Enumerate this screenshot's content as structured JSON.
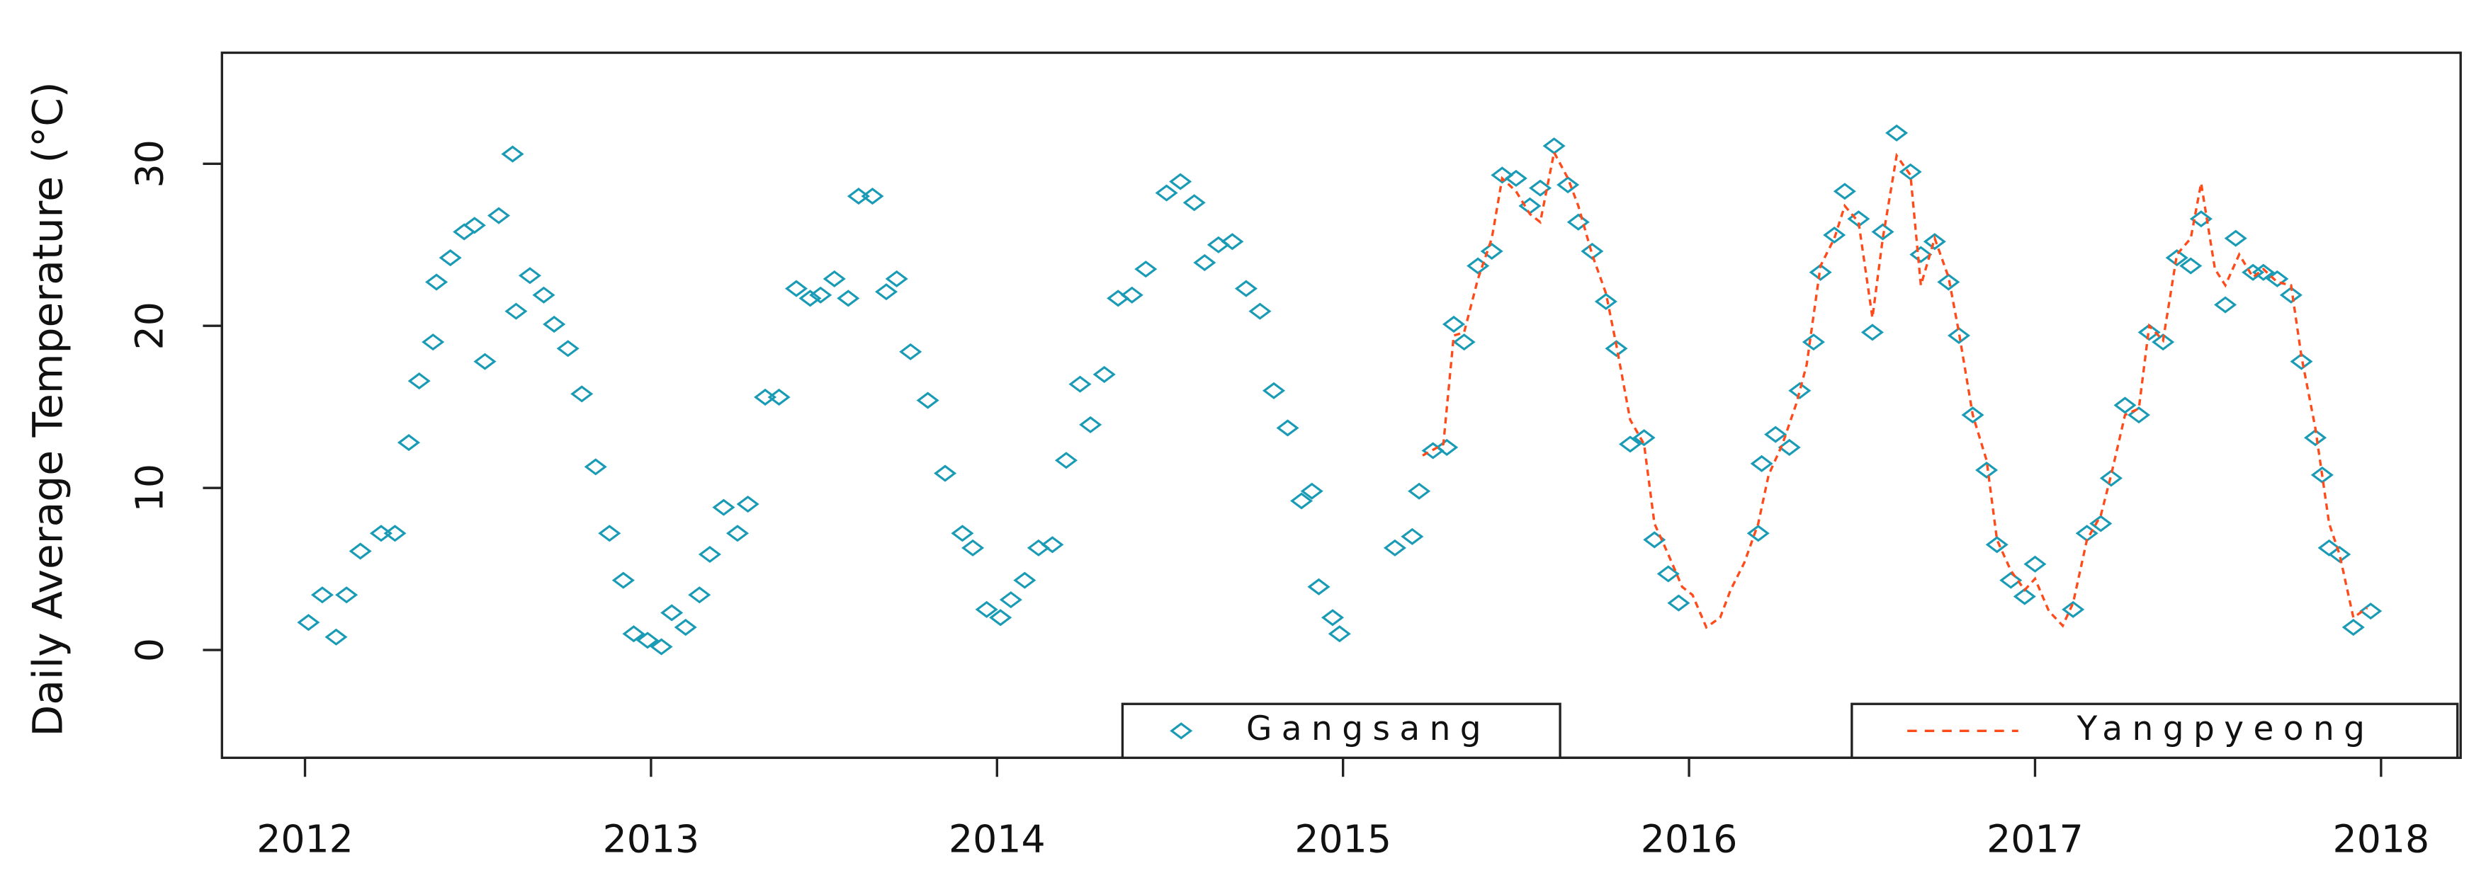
{
  "chart_data": {
    "type": "scatter",
    "ylabel": "Daily Average Temperature (°C)",
    "xlim": [
      2011.76,
      2018.23
    ],
    "ylim": [
      -6.65,
      36.85
    ],
    "xticks": [
      2012,
      2013,
      2014,
      2015,
      2016,
      2017,
      2018
    ],
    "yticks": [
      0,
      10,
      20,
      30
    ],
    "legend_position": "bottom",
    "series": [
      {
        "name": "Gangsang",
        "color": "#1a9bb5",
        "type": "scatter",
        "x": [
          2012.01,
          2012.05,
          2012.09,
          2012.12,
          2012.16,
          2012.22,
          2012.26,
          2012.3,
          2012.33,
          2012.37,
          2012.38,
          2012.42,
          2012.46,
          2012.49,
          2012.52,
          2012.56,
          2012.6,
          2012.61,
          2012.65,
          2012.69,
          2012.72,
          2012.76,
          2012.8,
          2012.84,
          2012.88,
          2012.92,
          2012.95,
          2012.99,
          2013.03,
          2013.06,
          2013.1,
          2013.14,
          2013.17,
          2013.21,
          2013.25,
          2013.28,
          2013.33,
          2013.37,
          2013.42,
          2013.46,
          2013.49,
          2013.53,
          2013.57,
          2013.6,
          2013.64,
          2013.68,
          2013.71,
          2013.75,
          2013.8,
          2013.85,
          2013.9,
          2013.93,
          2013.97,
          2014.01,
          2014.04,
          2014.08,
          2014.12,
          2014.16,
          2014.2,
          2014.24,
          2014.27,
          2014.31,
          2014.35,
          2014.39,
          2014.43,
          2014.49,
          2014.53,
          2014.57,
          2014.6,
          2014.64,
          2014.68,
          2014.72,
          2014.76,
          2014.8,
          2014.84,
          2014.88,
          2014.91,
          2014.93,
          2014.97,
          2014.99,
          2015.15,
          2015.2,
          2015.22,
          2015.26,
          2015.3,
          2015.32,
          2015.35,
          2015.39,
          2015.43,
          2015.46,
          2015.5,
          2015.54,
          2015.57,
          2015.61,
          2015.65,
          2015.68,
          2015.72,
          2015.76,
          2015.79,
          2015.83,
          2015.87,
          2015.9,
          2015.94,
          2015.97,
          2016.2,
          2016.21,
          2016.25,
          2016.29,
          2016.32,
          2016.36,
          2016.38,
          2016.42,
          2016.45,
          2016.49,
          2016.53,
          2016.56,
          2016.6,
          2016.64,
          2016.67,
          2016.71,
          2016.75,
          2016.78,
          2016.82,
          2016.86,
          2016.89,
          2016.93,
          2016.97,
          2017.0,
          2017.11,
          2017.15,
          2017.19,
          2017.22,
          2017.26,
          2017.3,
          2017.33,
          2017.37,
          2017.41,
          2017.45,
          2017.48,
          2017.55,
          2017.58,
          2017.63,
          2017.66,
          2017.7,
          2017.74,
          2017.77,
          2017.81,
          2017.83,
          2017.85,
          2017.88,
          2017.92,
          2017.97
        ],
        "values": [
          1.7,
          3.4,
          0.8,
          3.4,
          6.1,
          7.2,
          7.2,
          12.8,
          16.6,
          19.0,
          22.7,
          24.2,
          25.8,
          26.2,
          17.8,
          26.8,
          30.6,
          20.9,
          23.1,
          21.9,
          20.1,
          18.6,
          15.8,
          11.3,
          7.2,
          4.3,
          1.0,
          0.6,
          0.2,
          2.3,
          1.4,
          3.4,
          5.9,
          8.8,
          7.2,
          9.0,
          15.6,
          15.6,
          22.3,
          21.7,
          21.9,
          22.9,
          21.7,
          28.0,
          28.0,
          22.1,
          22.9,
          18.4,
          15.4,
          10.9,
          7.2,
          6.3,
          2.5,
          2.0,
          3.1,
          4.3,
          6.3,
          6.5,
          11.7,
          16.4,
          13.9,
          17.0,
          21.7,
          21.9,
          23.5,
          28.2,
          28.9,
          27.6,
          23.9,
          25.0,
          25.2,
          22.3,
          20.9,
          16.0,
          13.7,
          9.2,
          9.8,
          3.9,
          2.0,
          1.0,
          6.3,
          7.0,
          9.8,
          12.3,
          12.5,
          20.1,
          19.0,
          23.7,
          24.6,
          29.3,
          29.1,
          27.4,
          28.5,
          31.1,
          28.7,
          26.4,
          24.6,
          21.5,
          18.6,
          12.7,
          13.1,
          6.8,
          4.7,
          2.9,
          7.2,
          11.5,
          13.3,
          12.5,
          16.0,
          19.0,
          23.3,
          25.6,
          28.3,
          26.6,
          19.6,
          25.8,
          31.9,
          29.5,
          24.4,
          25.2,
          22.7,
          19.4,
          14.5,
          11.1,
          6.5,
          4.3,
          3.3,
          5.3,
          2.5,
          7.2,
          7.8,
          10.6,
          15.1,
          14.5,
          19.6,
          19.0,
          24.2,
          23.7,
          26.6,
          21.3,
          25.4,
          23.3,
          23.3,
          22.9,
          21.9,
          17.8,
          13.1,
          10.8,
          6.3,
          5.9,
          1.4,
          2.4
        ]
      },
      {
        "name": "Yangpyeong",
        "color": "#ff4a1a",
        "type": "line",
        "dash": true,
        "x": [
          2015.23,
          2015.29,
          2015.32,
          2015.35,
          2015.39,
          2015.43,
          2015.46,
          2015.5,
          2015.54,
          2015.57,
          2015.61,
          2015.65,
          2015.68,
          2015.72,
          2015.76,
          2015.79,
          2015.83,
          2015.87,
          2015.9,
          2015.94,
          2015.98,
          2016.01,
          2016.05,
          2016.09,
          2016.12,
          2016.16,
          2016.2,
          2016.23,
          2016.27,
          2016.31,
          2016.34,
          2016.38,
          2016.42,
          2016.45,
          2016.49,
          2016.53,
          2016.56,
          2016.6,
          2016.64,
          2016.67,
          2016.71,
          2016.75,
          2016.78,
          2016.82,
          2016.86,
          2016.89,
          2016.93,
          2016.97,
          2017.0,
          2017.04,
          2017.08,
          2017.11,
          2017.15,
          2017.19,
          2017.22,
          2017.26,
          2017.3,
          2017.33,
          2017.37,
          2017.41,
          2017.45,
          2017.48,
          2017.52,
          2017.55,
          2017.59,
          2017.63,
          2017.66,
          2017.7,
          2017.74,
          2017.77,
          2017.81,
          2017.85,
          2017.88,
          2017.92,
          2017.96
        ],
        "values": [
          12.0,
          12.7,
          19.4,
          19.6,
          22.9,
          25.4,
          29.1,
          28.3,
          26.9,
          26.4,
          30.7,
          29.1,
          27.4,
          24.4,
          22.0,
          18.8,
          14.2,
          12.7,
          7.8,
          5.9,
          3.9,
          3.4,
          1.4,
          2.0,
          3.7,
          5.4,
          7.8,
          10.8,
          12.7,
          15.2,
          17.6,
          23.7,
          25.4,
          27.4,
          26.4,
          20.5,
          25.4,
          30.5,
          29.3,
          22.5,
          25.4,
          23.0,
          19.6,
          14.5,
          11.7,
          6.8,
          4.9,
          3.7,
          4.4,
          2.4,
          1.5,
          2.9,
          6.8,
          8.3,
          10.8,
          14.5,
          14.9,
          20.0,
          19.1,
          24.4,
          25.4,
          28.8,
          23.5,
          22.5,
          24.4,
          23.0,
          23.5,
          22.7,
          22.5,
          18.1,
          13.7,
          7.8,
          5.9,
          2.0,
          2.6
        ]
      }
    ]
  }
}
